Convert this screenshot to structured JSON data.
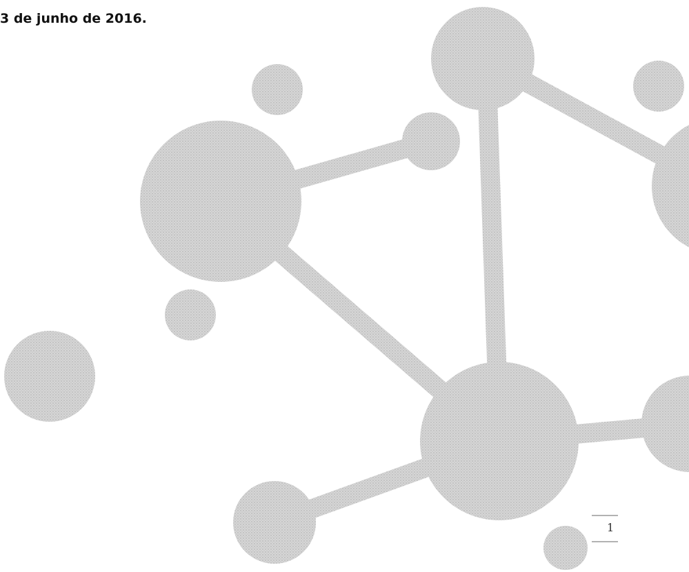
{
  "date_line": "3 de junho de 2016.",
  "page_number": "1"
}
